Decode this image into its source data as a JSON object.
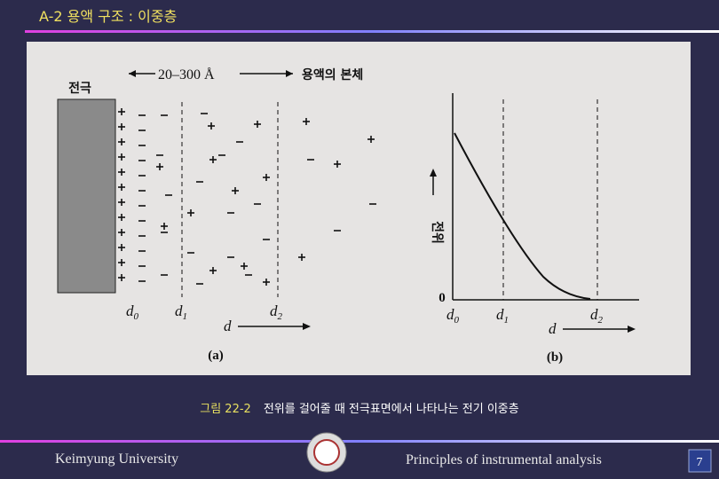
{
  "header": {
    "title": "A-2  용액 구조 : 이중층"
  },
  "figure": {
    "panel_a": {
      "electrode": "전극",
      "distance": "20–300 Å",
      "bulk": "용액의 본체",
      "d0": {
        "base": "d",
        "sub": "0"
      },
      "d1": {
        "base": "d",
        "sub": "1"
      },
      "d2": {
        "base": "d",
        "sub": "2"
      },
      "axis": "d",
      "label": "(a)"
    },
    "panel_b": {
      "potential": "전위",
      "zero": "0",
      "d0": {
        "base": "d",
        "sub": "0"
      },
      "d1": {
        "base": "d",
        "sub": "1"
      },
      "d2": {
        "base": "d",
        "sub": "2"
      },
      "axis": "d",
      "label": "(b)"
    }
  },
  "caption": {
    "number": "그림 22-2",
    "text": "전위를 걸어줄 때 전극표면에서 나타나는 전기 이중층"
  },
  "footer": {
    "left": "Keimyung University",
    "right": "Principles of instrumental analysis",
    "page": "7"
  }
}
